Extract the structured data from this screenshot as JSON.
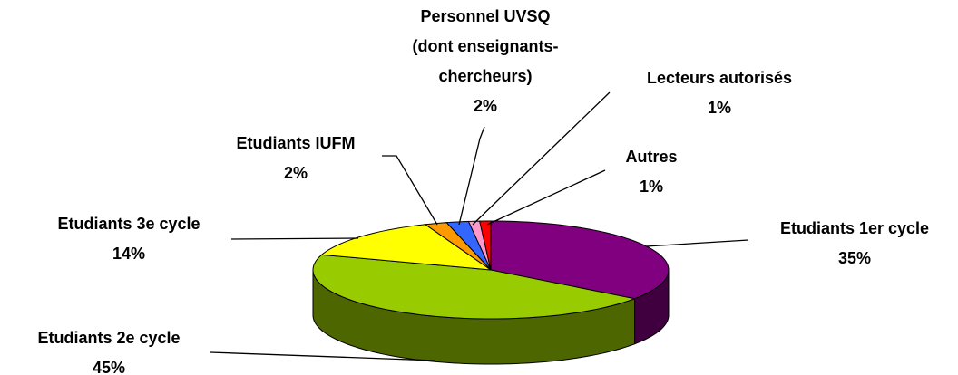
{
  "chart_data": {
    "type": "pie3d",
    "categories": [
      "Etudiants 1er cycle",
      "Etudiants 2e cycle",
      "Etudiants 3e cycle",
      "Etudiants IUFM",
      "Personnel UVSQ\n(dont enseignants-\nchercheurs)",
      "Lecteurs autorisés",
      "Autres"
    ],
    "values": [
      35,
      45,
      14,
      2,
      2,
      1,
      1
    ],
    "value_labels": [
      "35%",
      "45%",
      "14%",
      "2%",
      "2%",
      "1%",
      "1%"
    ],
    "colors": [
      "#800080",
      "#99cc00",
      "#ffff00",
      "#ff9900",
      "#3366ff",
      "#ff99cc",
      "#ff0000"
    ]
  }
}
